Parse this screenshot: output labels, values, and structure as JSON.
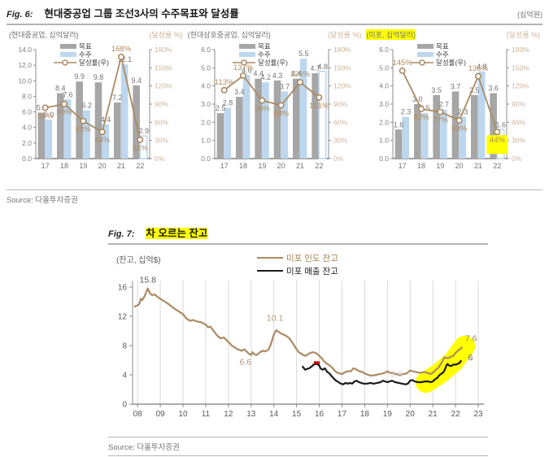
{
  "fig6": {
    "label": "Fig. 6:",
    "title": "현대중공업 그룹 조선3사의 수주목표와 달성률",
    "unit": "(십억원)",
    "source": "Source: 다올투자증권"
  },
  "fig7": {
    "label": "Fig. 7:",
    "title": "차 오르는 잔고",
    "source": "Source: 다올투자증권"
  },
  "colors": {
    "bar_target": "#a6a6a6",
    "bar_order": "#bdd7ee",
    "rate_line": "#ab8a62",
    "pct_label": "#b28c5f",
    "value_label": "#737373",
    "axis_left_label": "#808080",
    "axis_right_label": "#cdb49a",
    "legend_text": "#404040",
    "highlight": "#ffff00",
    "grid": "#d9d9d9",
    "tan_line": "#ab8a62",
    "black_line": "#1a1a1a",
    "red_mark": "#c00000"
  },
  "chart_data": [
    {
      "type": "bar",
      "title": "(현대중공업, 십억달러)",
      "right_axis_label": "(달성률 %)",
      "title_highlight": false,
      "categories": [
        "17",
        "18",
        "19",
        "20",
        "21",
        "22"
      ],
      "series": [
        {
          "name": "목표",
          "type": "bar",
          "color": "#a6a6a6",
          "values": [
            5.9,
            8.4,
            9.9,
            9.8,
            7.2,
            9.4
          ]
        },
        {
          "name": "수주",
          "type": "bar",
          "color": "#bdd7ee",
          "values": [
            5.0,
            7.6,
            6.2,
            4.4,
            12.1,
            2.9
          ],
          "hollow_last": true
        },
        {
          "name": "달성률(우)",
          "type": "line",
          "axis": "right",
          "unit": "%",
          "color": "#ab8a62",
          "values": [
            84,
            90,
            62,
            44,
            168,
            31
          ]
        }
      ],
      "ylim": [
        0,
        14
      ],
      "ystep": 2,
      "y2lim": [
        0,
        180
      ],
      "y2step": 30,
      "rate_highlight_index": null
    },
    {
      "type": "bar",
      "title": "(현대삼호중공업, 십억달러)",
      "right_axis_label": "(달성률 %)",
      "title_highlight": false,
      "categories": [
        "17",
        "18",
        "19",
        "20",
        "21",
        "22"
      ],
      "series": [
        {
          "name": "목표",
          "type": "bar",
          "color": "#a6a6a6",
          "values": [
            2.5,
            3.4,
            4.4,
            4.3,
            4.4,
            4.7
          ]
        },
        {
          "name": "수주",
          "type": "bar",
          "color": "#bdd7ee",
          "values": [
            2.8,
            4.6,
            4.2,
            3.7,
            5.5,
            4.8
          ],
          "hollow_last": true
        },
        {
          "name": "달성률(우)",
          "type": "line",
          "axis": "right",
          "unit": "%",
          "color": "#ab8a62",
          "values": [
            113,
            137,
            96,
            88,
            126,
            101
          ]
        }
      ],
      "ylim": [
        0,
        6
      ],
      "ystep": 1,
      "y2lim": [
        0,
        180
      ],
      "y2step": 30,
      "rate_highlight_index": null
    },
    {
      "type": "bar",
      "title": "(미포, 십억달러)",
      "right_axis_label": "(달성률 %)",
      "title_highlight": true,
      "categories": [
        "17",
        "18",
        "19",
        "20",
        "21",
        "22"
      ],
      "series": [
        {
          "name": "목표",
          "type": "bar",
          "color": "#a6a6a6",
          "values": [
            1.6,
            3.0,
            3.5,
            3.7,
            3.5,
            3.6
          ]
        },
        {
          "name": "수주",
          "type": "bar",
          "color": "#bdd7ee",
          "values": [
            2.3,
            2.5,
            2.7,
            2.3,
            4.8,
            1.6
          ],
          "hollow_last": true
        },
        {
          "name": "달성률(우)",
          "type": "line",
          "axis": "right",
          "unit": "%",
          "color": "#ab8a62",
          "values": [
            145,
            82,
            77,
            63,
            136,
            44
          ]
        }
      ],
      "ylim": [
        0,
        6
      ],
      "ystep": 1,
      "y2lim": [
        0,
        180
      ],
      "y2step": 30,
      "rate_highlight_index": 5
    },
    {
      "type": "line",
      "title": "차 오르는 잔고",
      "ylabel": "(잔고, 십억$)",
      "ylim": [
        0,
        16
      ],
      "yticks": [
        0,
        4,
        8,
        12,
        16
      ],
      "xticks": [
        "08",
        "09",
        "10",
        "11",
        "12",
        "13",
        "14",
        "15",
        "16",
        "17",
        "18",
        "19",
        "20",
        "21",
        "22",
        "23"
      ],
      "xlim": [
        7.78,
        23.25
      ],
      "series": [
        {
          "name": "미포 인도 잔고",
          "color": "#ab8a62",
          "points": [
            [
              7.85,
              13.3
            ],
            [
              8.0,
              13.5
            ],
            [
              8.08,
              13.7
            ],
            [
              8.14,
              14.4
            ],
            [
              8.2,
              14.2
            ],
            [
              8.3,
              14.7
            ],
            [
              8.45,
              15.8
            ],
            [
              8.55,
              15.1
            ],
            [
              8.65,
              14.9
            ],
            [
              8.75,
              15.0
            ],
            [
              8.9,
              14.6
            ],
            [
              9.0,
              14.4
            ],
            [
              9.2,
              14.0
            ],
            [
              9.4,
              13.6
            ],
            [
              9.6,
              13.1
            ],
            [
              9.8,
              12.7
            ],
            [
              10.0,
              12.3
            ],
            [
              10.15,
              11.7
            ],
            [
              10.3,
              11.4
            ],
            [
              10.45,
              11.5
            ],
            [
              10.6,
              11.3
            ],
            [
              10.8,
              11.2
            ],
            [
              10.9,
              11.0
            ],
            [
              11.0,
              10.9
            ],
            [
              11.1,
              10.5
            ],
            [
              11.2,
              10.6
            ],
            [
              11.35,
              10.0
            ],
            [
              11.5,
              9.4
            ],
            [
              11.65,
              9.0
            ],
            [
              11.8,
              9.1
            ],
            [
              11.9,
              8.8
            ],
            [
              12.0,
              8.5
            ],
            [
              12.15,
              8.0
            ],
            [
              12.3,
              7.7
            ],
            [
              12.4,
              7.5
            ],
            [
              12.5,
              7.4
            ],
            [
              12.6,
              7.3
            ],
            [
              12.7,
              7.5
            ],
            [
              12.8,
              7.2
            ],
            [
              12.9,
              6.9
            ],
            [
              13.0,
              6.7
            ],
            [
              13.05,
              7.1
            ],
            [
              13.15,
              6.8
            ],
            [
              13.25,
              6.7
            ],
            [
              13.35,
              7.0
            ],
            [
              13.5,
              7.3
            ],
            [
              13.6,
              7.2
            ],
            [
              13.75,
              7.4
            ],
            [
              13.85,
              8.0
            ],
            [
              14.0,
              9.5
            ],
            [
              14.1,
              10.1
            ],
            [
              14.2,
              9.9
            ],
            [
              14.35,
              9.6
            ],
            [
              14.5,
              9.4
            ],
            [
              14.65,
              9.1
            ],
            [
              14.75,
              8.7
            ],
            [
              14.9,
              8.0
            ],
            [
              15.0,
              7.5
            ],
            [
              15.1,
              7.1
            ],
            [
              15.2,
              6.9
            ],
            [
              15.3,
              6.7
            ],
            [
              15.4,
              6.6
            ],
            [
              15.5,
              6.8
            ],
            [
              15.6,
              7.0
            ],
            [
              15.75,
              7.1
            ],
            [
              15.9,
              6.9
            ],
            [
              16.0,
              6.6
            ],
            [
              16.1,
              6.3
            ],
            [
              16.2,
              5.9
            ],
            [
              16.3,
              5.6
            ],
            [
              16.45,
              5.3
            ],
            [
              16.6,
              4.9
            ],
            [
              16.7,
              4.5
            ],
            [
              16.8,
              4.3
            ],
            [
              16.9,
              4.2
            ],
            [
              17.0,
              4.1
            ],
            [
              17.1,
              4.3
            ],
            [
              17.25,
              4.5
            ],
            [
              17.4,
              4.5
            ],
            [
              17.5,
              4.9
            ],
            [
              17.6,
              4.8
            ],
            [
              17.75,
              4.5
            ],
            [
              17.9,
              4.4
            ],
            [
              18.0,
              4.2
            ],
            [
              18.15,
              4.0
            ],
            [
              18.3,
              3.9
            ],
            [
              18.5,
              4.0
            ],
            [
              18.65,
              4.1
            ],
            [
              18.8,
              4.2
            ],
            [
              18.9,
              4.3
            ],
            [
              19.0,
              4.5
            ],
            [
              19.1,
              4.3
            ],
            [
              19.25,
              4.2
            ],
            [
              19.4,
              4.1
            ],
            [
              19.55,
              4.0
            ],
            [
              19.7,
              4.1
            ],
            [
              19.85,
              4.2
            ],
            [
              20.0,
              4.6
            ],
            [
              20.1,
              4.5
            ],
            [
              20.25,
              4.4
            ],
            [
              20.4,
              4.3
            ],
            [
              20.5,
              4.3
            ],
            [
              20.6,
              4.4
            ],
            [
              20.75,
              4.3
            ],
            [
              20.9,
              4.1
            ],
            [
              21.0,
              4.3
            ],
            [
              21.1,
              4.6
            ],
            [
              21.25,
              5.0
            ],
            [
              21.4,
              5.7
            ],
            [
              21.5,
              6.4
            ],
            [
              21.6,
              6.3
            ],
            [
              21.7,
              6.3
            ],
            [
              21.8,
              6.5
            ],
            [
              21.9,
              6.6
            ],
            [
              22.0,
              7.0
            ],
            [
              22.1,
              7.3
            ],
            [
              22.2,
              7.5
            ],
            [
              22.3,
              7.8
            ]
          ]
        },
        {
          "name": "미포 매출 잔고",
          "color": "#1a1a1a",
          "points": [
            [
              15.25,
              5.2
            ],
            [
              15.3,
              5.0
            ],
            [
              15.38,
              4.7
            ],
            [
              15.45,
              4.8
            ],
            [
              15.55,
              4.9
            ],
            [
              15.65,
              5.1
            ],
            [
              15.75,
              5.4
            ],
            [
              15.85,
              5.5
            ],
            [
              15.95,
              5.4
            ],
            [
              16.0,
              5.3
            ],
            [
              16.05,
              4.9
            ],
            [
              16.15,
              4.7
            ],
            [
              16.25,
              4.9
            ],
            [
              16.35,
              4.4
            ],
            [
              16.45,
              4.2
            ],
            [
              16.55,
              3.8
            ],
            [
              16.7,
              3.3
            ],
            [
              16.85,
              3.0
            ],
            [
              16.95,
              2.8
            ],
            [
              17.05,
              2.7
            ],
            [
              17.15,
              2.9
            ],
            [
              17.25,
              2.8
            ],
            [
              17.35,
              2.9
            ],
            [
              17.45,
              2.8
            ],
            [
              17.55,
              3.1
            ],
            [
              17.65,
              3.2
            ],
            [
              17.75,
              3.0
            ],
            [
              17.85,
              2.9
            ],
            [
              17.95,
              2.8
            ],
            [
              18.1,
              2.8
            ],
            [
              18.25,
              2.9
            ],
            [
              18.4,
              2.8
            ],
            [
              18.55,
              2.9
            ],
            [
              18.7,
              3.0
            ],
            [
              18.8,
              3.2
            ],
            [
              18.9,
              3.1
            ],
            [
              19.0,
              3.0
            ],
            [
              19.1,
              3.1
            ],
            [
              19.2,
              3.2
            ],
            [
              19.35,
              3.0
            ],
            [
              19.5,
              2.9
            ],
            [
              19.65,
              2.8
            ],
            [
              19.8,
              2.7
            ],
            [
              19.9,
              2.8
            ],
            [
              20.0,
              3.2
            ],
            [
              20.1,
              3.3
            ],
            [
              20.2,
              3.1
            ],
            [
              20.35,
              3.0
            ],
            [
              20.5,
              3.0
            ],
            [
              20.65,
              3.1
            ],
            [
              20.8,
              3.1
            ],
            [
              20.9,
              3.0
            ],
            [
              21.0,
              3.1
            ],
            [
              21.1,
              3.4
            ],
            [
              21.2,
              3.6
            ],
            [
              21.3,
              4.0
            ],
            [
              21.4,
              4.2
            ],
            [
              21.5,
              4.5
            ],
            [
              21.6,
              5.3
            ],
            [
              21.65,
              5.5
            ],
            [
              21.7,
              5.3
            ],
            [
              21.8,
              5.2
            ],
            [
              21.9,
              5.4
            ],
            [
              22.0,
              5.4
            ],
            [
              22.1,
              5.5
            ],
            [
              22.2,
              5.7
            ],
            [
              22.25,
              6.0
            ]
          ]
        }
      ],
      "red_mark": {
        "color": "#c00000",
        "points": [
          [
            15.76,
            5.65
          ],
          [
            16.02,
            5.65
          ]
        ]
      },
      "highlight_band": {
        "color": "#ffff00",
        "width": 26,
        "points": [
          [
            20.7,
            3.0
          ],
          [
            21.3,
            4.2
          ],
          [
            21.9,
            5.8
          ],
          [
            22.4,
            7.9
          ]
        ]
      },
      "annotations": [
        {
          "text": "15.8",
          "x": 8.45,
          "y": 16.6,
          "color": "#595959",
          "anchor": "middle"
        },
        {
          "text": "10.1",
          "x": 14.05,
          "y": 11.4,
          "color": "#b49a76",
          "anchor": "middle"
        },
        {
          "text": "6.6",
          "x": 12.75,
          "y": 5.4,
          "color": "#b49a76",
          "anchor": "middle"
        },
        {
          "text": "3.9",
          "x": 19.4,
          "y": 3.7,
          "color": "#c8c8c8",
          "anchor": "middle"
        },
        {
          "text": "7.6",
          "x": 22.42,
          "y": 8.6,
          "color": "#a0824f",
          "anchor": "start"
        },
        {
          "text": "6",
          "x": 22.55,
          "y": 6.0,
          "color": "#595959",
          "anchor": "start"
        }
      ]
    }
  ]
}
